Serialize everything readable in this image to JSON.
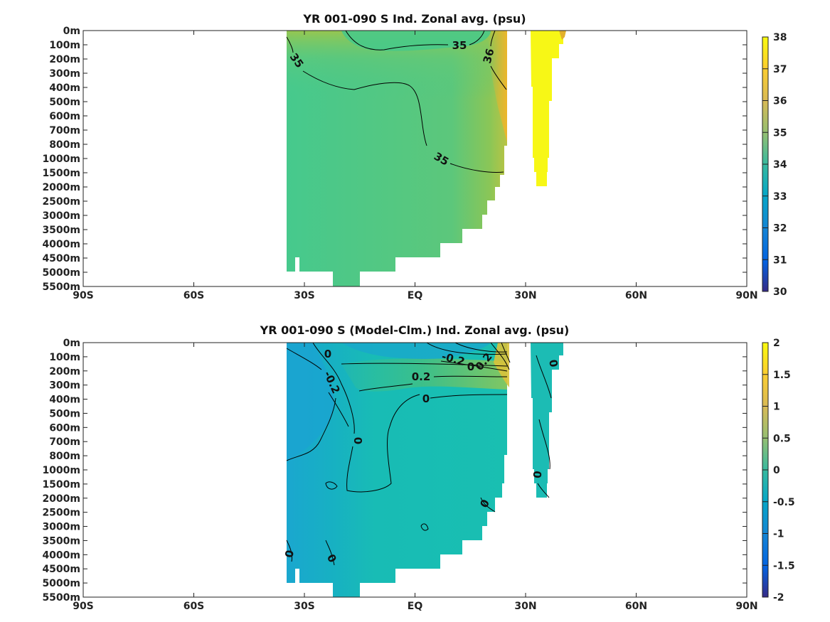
{
  "chart_data": [
    {
      "type": "heatmap",
      "title": "YR 001-090 S Ind. Zonal avg. (psu)",
      "x_ticks": [
        "90S",
        "60S",
        "30S",
        "EQ",
        "30N",
        "60N",
        "90N"
      ],
      "x_tick_values": [
        -90,
        -60,
        -30,
        0,
        30,
        60,
        90
      ],
      "y_ticks": [
        "0m",
        "100m",
        "200m",
        "300m",
        "400m",
        "500m",
        "600m",
        "700m",
        "800m",
        "1000m",
        "1500m",
        "2000m",
        "2500m",
        "3000m",
        "3500m",
        "4000m",
        "4500m",
        "5000m",
        "5500m"
      ],
      "colorbar": {
        "min": 30,
        "max": 38,
        "ticks": [
          "38",
          "37",
          "36",
          "35",
          "34",
          "33",
          "32",
          "31",
          "30"
        ]
      },
      "contour_labels": [
        "35",
        "35",
        "36",
        "35"
      ],
      "colors": {
        "field_main": "#44c98a",
        "field_high": "#a8c63e",
        "field_edge": "#e6b52c",
        "field_north": "#f7f716"
      }
    },
    {
      "type": "heatmap",
      "title": "YR 001-090 S (Model-Clm.) Ind. Zonal avg. (psu)",
      "x_ticks": [
        "90S",
        "60S",
        "30S",
        "EQ",
        "30N",
        "60N",
        "90N"
      ],
      "x_tick_values": [
        -90,
        -60,
        -30,
        0,
        30,
        60,
        90
      ],
      "y_ticks": [
        "0m",
        "100m",
        "200m",
        "300m",
        "400m",
        "500m",
        "600m",
        "700m",
        "800m",
        "1000m",
        "1500m",
        "2000m",
        "2500m",
        "3000m",
        "3500m",
        "4000m",
        "4500m",
        "5000m",
        "5500m"
      ],
      "colorbar": {
        "min": -2,
        "max": 2,
        "ticks": [
          "2",
          "1.5",
          "1",
          "0.5",
          "0",
          "-0.5",
          "-1",
          "-1.5",
          "-2"
        ]
      },
      "contour_labels": [
        "0",
        "-0.2",
        "-0.2",
        "0",
        "0.2",
        "0.2",
        "0",
        "0",
        "0",
        "0",
        "0",
        "0",
        "0"
      ],
      "colors": {
        "field_main": "#19bdb5",
        "field_low": "#1ba6cf",
        "field_high": "#56c46a",
        "field_edge": "#d8c635"
      }
    }
  ]
}
